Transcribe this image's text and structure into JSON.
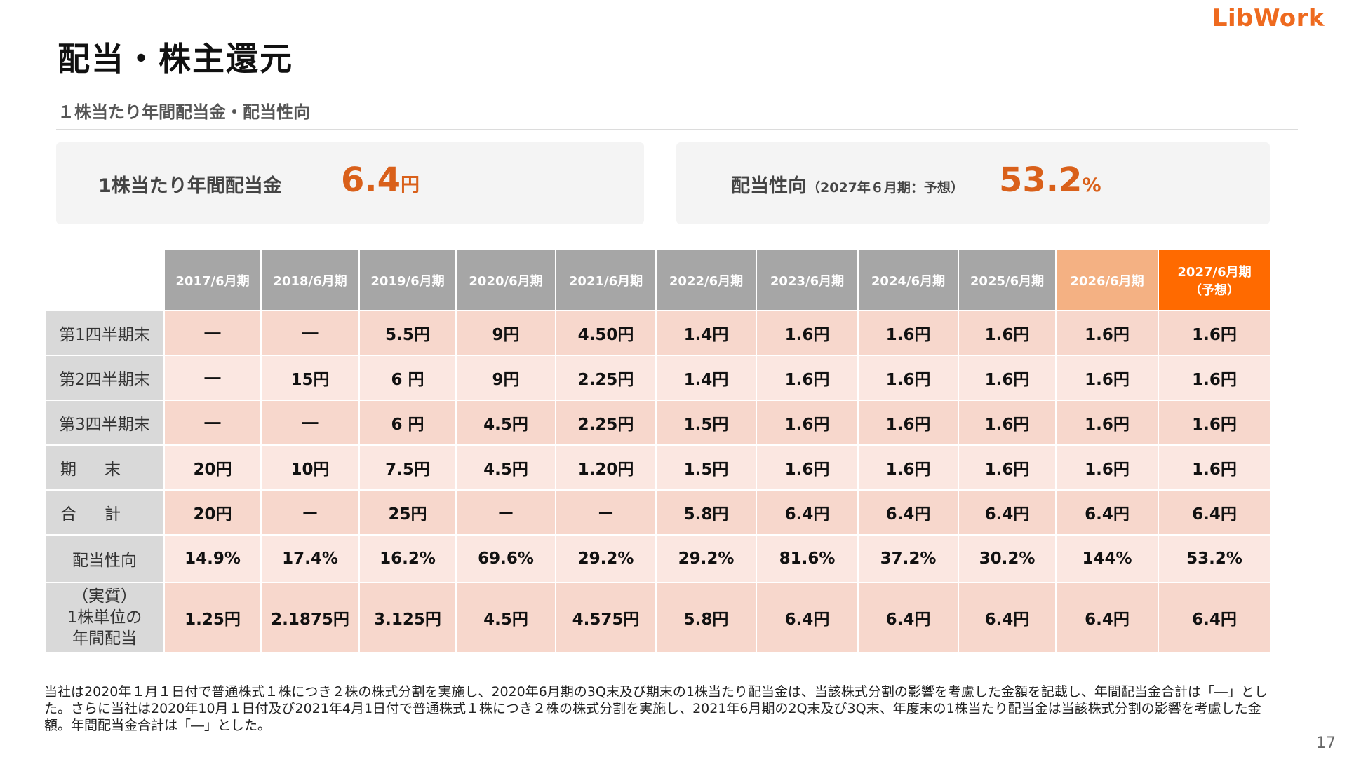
{
  "logo": "LibWork",
  "title": "配当・株主還元",
  "subtitle": "１株当たり年間配当金・配当性向",
  "summary": {
    "dividend_label": "1株当たり年間配当金",
    "dividend_value": "6.4",
    "dividend_unit": "円",
    "payout_label": "配当性向",
    "payout_note": "（2027年６月期：予想）",
    "payout_value": "53.2",
    "payout_unit": "%"
  },
  "table": {
    "headers": [
      "2017/6月期",
      "2018/6月期",
      "2019/6月期",
      "2020/6月期",
      "2021/6月期",
      "2022/6月期",
      "2023/6月期",
      "2024/6月期",
      "2025/6月期",
      "2026/6月期"
    ],
    "forecast_header_line1": "2027/6月期",
    "forecast_header_line2": "（予想）",
    "rows": [
      {
        "label": "第1四半期末",
        "cells": [
          "―",
          "―",
          "5.5円",
          "9円",
          "4.50円",
          "1.4円",
          "1.6円",
          "1.6円",
          "1.6円",
          "1.6円",
          "1.6円"
        ]
      },
      {
        "label": "第2四半期末",
        "cells": [
          "―",
          "15円",
          "6 円",
          "9円",
          "2.25円",
          "1.4円",
          "1.6円",
          "1.6円",
          "1.6円",
          "1.6円",
          "1.6円"
        ]
      },
      {
        "label": "第3四半期末",
        "cells": [
          "―",
          "―",
          "6 円",
          "4.5円",
          "2.25円",
          "1.5円",
          "1.6円",
          "1.6円",
          "1.6円",
          "1.6円",
          "1.6円"
        ]
      },
      {
        "label": "期末",
        "cells": [
          "20円",
          "10円",
          "7.5円",
          "4.5円",
          "1.20円",
          "1.5円",
          "1.6円",
          "1.6円",
          "1.6円",
          "1.6円",
          "1.6円"
        ]
      },
      {
        "label": "合計",
        "cells": [
          "20円",
          "ー",
          "25円",
          "ー",
          "ー",
          "5.8円",
          "6.4円",
          "6.4円",
          "6.4円",
          "6.4円",
          "6.4円"
        ]
      },
      {
        "label": "配当性向",
        "cells": [
          "14.9%",
          "17.4%",
          "16.2%",
          "69.6%",
          "29.2%",
          "29.2%",
          "81.6%",
          "37.2%",
          "30.2%",
          "144%",
          "53.2%"
        ]
      }
    ],
    "real_row": {
      "label_line1": "（実質）",
      "label_line2": "1株単位の",
      "label_line3": "年間配当",
      "cells": [
        "1.25円",
        "2.1875円",
        "3.125円",
        "4.5円",
        "4.575円",
        "5.8円",
        "6.4円",
        "6.4円",
        "6.4円",
        "6.4円",
        "6.4円"
      ]
    }
  },
  "footnote": "当社は2020年１月１日付で普通株式１株につき２株の株式分割を実施し、2020年6月期の3Q末及び期末の1株当たり配当金は、当該株式分割の影響を考慮した金額を記載し、年間配当金合計は「―」とした。さらに当社は2020年10月１日付及び2021年4月1日付で普通株式１株につき２株の株式分割を実施し、2021年6月期の2Q末及び3Q末、年度末の1株当たり配当金は当該株式分割の影響を考慮した金額。年間配当金合計は「―」とした。",
  "page_number": "17",
  "colors": {
    "accent": "#ff6a00",
    "accent_light": "#f4b183",
    "value_orange": "#d9601a",
    "header_gray": "#a6a6a6",
    "row_pink_dark": "#f7d7cc",
    "row_pink_light": "#fbe7e1",
    "real_blue": "#2f75c0"
  }
}
